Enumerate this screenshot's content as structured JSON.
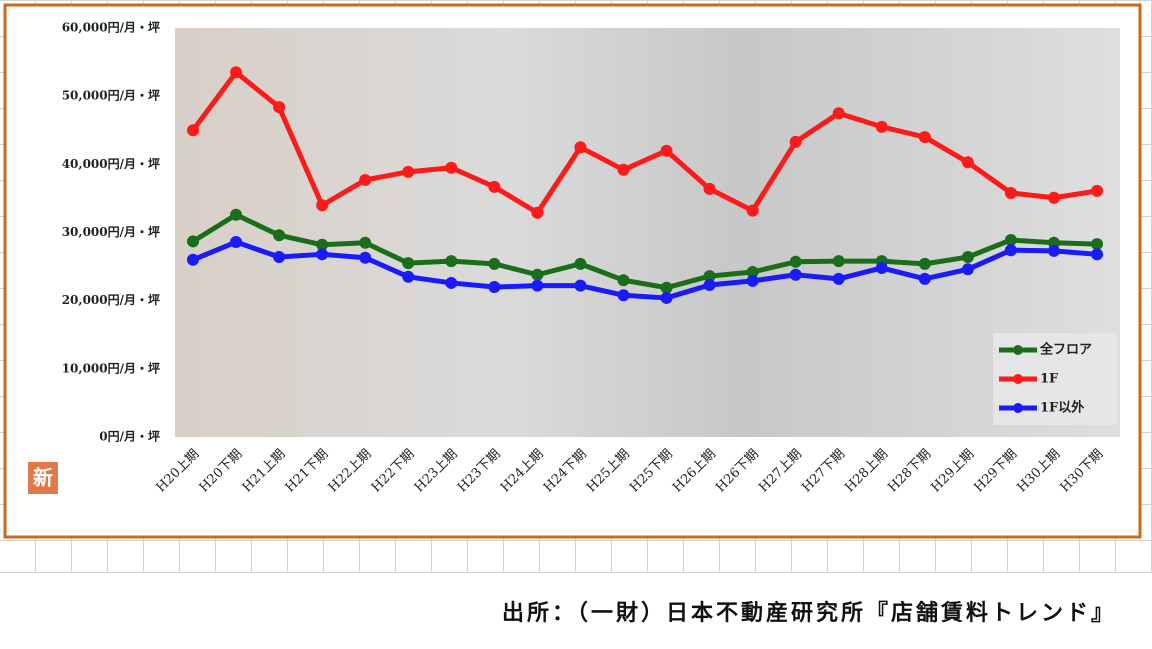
{
  "chart_data": {
    "type": "line",
    "categories": [
      "H20上期",
      "H20下期",
      "H21上期",
      "H21下期",
      "H22上期",
      "H22下期",
      "H23上期",
      "H23下期",
      "H24上期",
      "H24下期",
      "H25上期",
      "H25下期",
      "H26上期",
      "H26下期",
      "H27上期",
      "H27下期",
      "H28上期",
      "H28下期",
      "H29上期",
      "H29下期",
      "H30上期",
      "H30下期"
    ],
    "series": [
      {
        "name": "全フロア",
        "color": "#1a6e1a",
        "values": [
          28700,
          32600,
          29600,
          28200,
          28500,
          25500,
          25800,
          25400,
          23800,
          25400,
          23000,
          21900,
          23600,
          24200,
          25700,
          25800,
          25800,
          25400,
          26400,
          28900,
          28500,
          28300
        ]
      },
      {
        "name": "1F",
        "color": "#ff1a1a",
        "values": [
          45000,
          53500,
          48400,
          34000,
          37700,
          38900,
          39500,
          36700,
          32900,
          42500,
          39200,
          42000,
          36400,
          33200,
          43300,
          47500,
          45500,
          44000,
          40300,
          35800,
          35100,
          36100
        ]
      },
      {
        "name": "1F以外",
        "color": "#1a1aff",
        "values": [
          26000,
          28600,
          26400,
          26800,
          26300,
          23500,
          22600,
          22000,
          22200,
          22200,
          20800,
          20400,
          22300,
          22900,
          23800,
          23200,
          24800,
          23200,
          24600,
          27400,
          27300,
          26800
        ]
      }
    ],
    "ylim": [
      0,
      60000
    ],
    "yticks": [
      {
        "value": 0,
        "label": "0円/月・坪"
      },
      {
        "value": 10000,
        "label": "10,000円/月・坪"
      },
      {
        "value": 20000,
        "label": "20,000円/月・坪"
      },
      {
        "value": 30000,
        "label": "30,000円/月・坪"
      },
      {
        "value": 40000,
        "label": "40,000円/月・坪"
      },
      {
        "value": 50000,
        "label": "50,000円/月・坪"
      },
      {
        "value": 60000,
        "label": "60,000円/月・坪"
      }
    ],
    "grid": false,
    "legend": "lower-right"
  },
  "badge": "新",
  "source": "出所：（一財）日本不動産研究所『店舗賃料トレンド』"
}
